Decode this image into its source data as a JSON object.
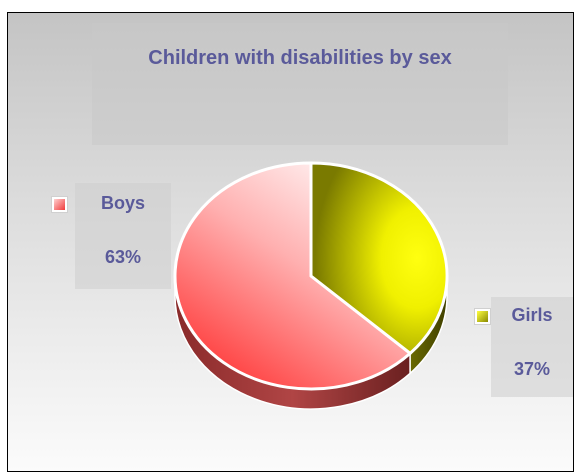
{
  "chart_data": {
    "type": "pie",
    "title": "Children with disabilities by sex",
    "categories": [
      "Boys",
      "Girls"
    ],
    "values": [
      63,
      37
    ],
    "value_labels": [
      "63%",
      "37%"
    ],
    "colors": [
      "#f04848",
      "#d8d800"
    ],
    "legend": "none"
  }
}
